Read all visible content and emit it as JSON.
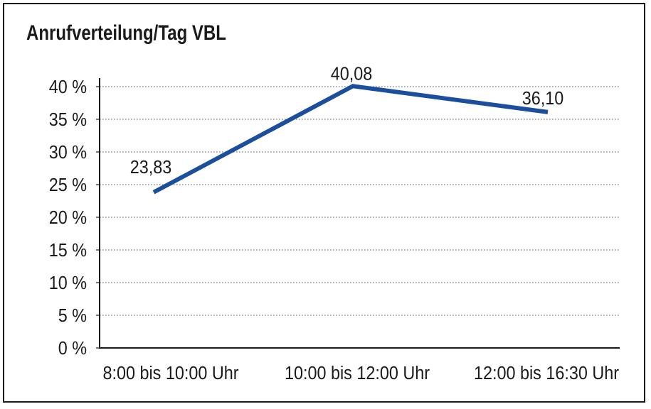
{
  "window": {
    "title": "Anrufverteilung/Tag VBL"
  },
  "chart_data": {
    "type": "line",
    "title": "Anrufverteilung/Tag VBL",
    "categories": [
      "8:00 bis 10:00 Uhr",
      "10:00 bis 12:00 Uhr",
      "12:00 bis 16:30 Uhr"
    ],
    "values": [
      23.83,
      40.08,
      36.1
    ],
    "point_labels": [
      "23,83",
      "40,08",
      "36,10"
    ],
    "ytick_values": [
      0,
      5,
      10,
      15,
      20,
      25,
      30,
      35,
      40
    ],
    "ytick_suffix": " %",
    "ylim": [
      0,
      40
    ],
    "xlabel": "",
    "ylabel": "",
    "legend": "none",
    "grid": "horizontal-dotted",
    "line_color": "#1b4e9c",
    "text_color": "#1a1a1a",
    "grid_color": "#7a7a7a",
    "border_color": "#1a1a1a",
    "background": "#ffffff"
  }
}
